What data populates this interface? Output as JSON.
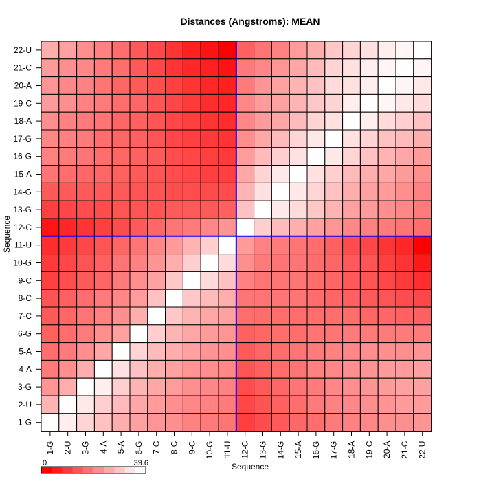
{
  "chart_data": {
    "type": "heatmap",
    "title": "Distances (Angstroms):  MEAN",
    "xlabel": "Sequence",
    "ylabel": "Sequence",
    "labels": [
      "1-G",
      "2-U",
      "3-G",
      "4-A",
      "5-A",
      "6-G",
      "7-C",
      "8-C",
      "9-C",
      "10-G",
      "11-U",
      "12-C",
      "13-G",
      "14-G",
      "15-A",
      "16-G",
      "17-G",
      "18-A",
      "19-C",
      "20-A",
      "21-C",
      "22-U"
    ],
    "strand_boundary_after_index": 11,
    "color_range": [
      0,
      39.6
    ],
    "color_low": "#ff0000",
    "color_high": "#ffffff",
    "divider_color": "#0000ff",
    "legend": {
      "min_label": "0",
      "max_label": "39.6"
    },
    "rows_top_to_bottom": [
      [
        27,
        25,
        22,
        20,
        17,
        14,
        11,
        8,
        5,
        3,
        0,
        15,
        18,
        20,
        24,
        27,
        31,
        33,
        35,
        37,
        38,
        40
      ],
      [
        24,
        22,
        21,
        19,
        17,
        14,
        11,
        8,
        6,
        5,
        3,
        19,
        21,
        23,
        26,
        29,
        33,
        35,
        37,
        38,
        40,
        38
      ],
      [
        23,
        21,
        20,
        18,
        16,
        14,
        12,
        10,
        8,
        6,
        5,
        19,
        23,
        25,
        28,
        30,
        34,
        35,
        37,
        40,
        38,
        36
      ],
      [
        24,
        22,
        20,
        19,
        17,
        16,
        13,
        11,
        9,
        7,
        6,
        21,
        24,
        25,
        28,
        31,
        33,
        37,
        40,
        38,
        36,
        34
      ],
      [
        22,
        20,
        19,
        18,
        16,
        15,
        13,
        11,
        10,
        8,
        7,
        21,
        24,
        26,
        29,
        33,
        35,
        40,
        37,
        34,
        32,
        30
      ],
      [
        21,
        20,
        19,
        17,
        16,
        15,
        13,
        11,
        10,
        9,
        8,
        22,
        26,
        29,
        33,
        36,
        40,
        35,
        33,
        30,
        29,
        27
      ],
      [
        20,
        19,
        18,
        17,
        16,
        15,
        14,
        12,
        11,
        10,
        9,
        24,
        29,
        32,
        35,
        40,
        36,
        33,
        30,
        28,
        26,
        24
      ],
      [
        18,
        17,
        16,
        16,
        15,
        14,
        13,
        12,
        11,
        10,
        10,
        26,
        33,
        36,
        40,
        35,
        32,
        29,
        27,
        26,
        24,
        22
      ],
      [
        14,
        14,
        14,
        14,
        14,
        13,
        13,
        12,
        12,
        12,
        12,
        28,
        35,
        40,
        36,
        33,
        30,
        27,
        25,
        24,
        22,
        20
      ],
      [
        10,
        11,
        12,
        12,
        13,
        13,
        13,
        14,
        14,
        14,
        15,
        30,
        40,
        36,
        34,
        31,
        28,
        25,
        24,
        22,
        21,
        19
      ],
      [
        3,
        6,
        8,
        10,
        12,
        14,
        16,
        18,
        19,
        21,
        23,
        40,
        32,
        29,
        27,
        25,
        23,
        21,
        20,
        19,
        18,
        17
      ],
      [
        7,
        9,
        11,
        13,
        16,
        18,
        21,
        24,
        28,
        32,
        40,
        24,
        20,
        19,
        18,
        17,
        15,
        12,
        11,
        8,
        6,
        0
      ],
      [
        9,
        11,
        13,
        15,
        18,
        20,
        23,
        27,
        32,
        40,
        34,
        22,
        19,
        18,
        18,
        17,
        16,
        14,
        13,
        10,
        8,
        4
      ],
      [
        10,
        12,
        14,
        16,
        19,
        22,
        25,
        31,
        40,
        34,
        30,
        20,
        18,
        18,
        18,
        17,
        16,
        14,
        13,
        11,
        9,
        7
      ],
      [
        13,
        15,
        17,
        19,
        21,
        24,
        30,
        40,
        31,
        29,
        27,
        18,
        18,
        18,
        18,
        17,
        16,
        15,
        14,
        13,
        12,
        11
      ],
      [
        14,
        16,
        18,
        20,
        22,
        27,
        40,
        31,
        28,
        26,
        25,
        17,
        17,
        17,
        17,
        17,
        17,
        17,
        16,
        16,
        15,
        15
      ],
      [
        15,
        17,
        19,
        22,
        25,
        40,
        32,
        28,
        26,
        24,
        23,
        15,
        16,
        17,
        17,
        18,
        18,
        19,
        19,
        19,
        19,
        19
      ],
      [
        17,
        19,
        22,
        26,
        40,
        33,
        29,
        27,
        25,
        23,
        22,
        14,
        16,
        17,
        18,
        19,
        20,
        21,
        22,
        22,
        22,
        23
      ],
      [
        19,
        22,
        27,
        40,
        35,
        30,
        27,
        25,
        23,
        22,
        21,
        13,
        15,
        17,
        18,
        20,
        21,
        22,
        23,
        24,
        24,
        25
      ],
      [
        23,
        27,
        40,
        37,
        32,
        28,
        26,
        24,
        22,
        21,
        20,
        12,
        14,
        16,
        18,
        19,
        21,
        22,
        23,
        24,
        25,
        25
      ],
      [
        28,
        40,
        36,
        32,
        29,
        26,
        24,
        22,
        21,
        20,
        19,
        11,
        13,
        15,
        17,
        19,
        20,
        21,
        22,
        23,
        24,
        24
      ],
      [
        40,
        37,
        33,
        30,
        27,
        25,
        23,
        22,
        20,
        19,
        18,
        10,
        12,
        14,
        16,
        17,
        19,
        20,
        21,
        22,
        22,
        23
      ]
    ]
  }
}
